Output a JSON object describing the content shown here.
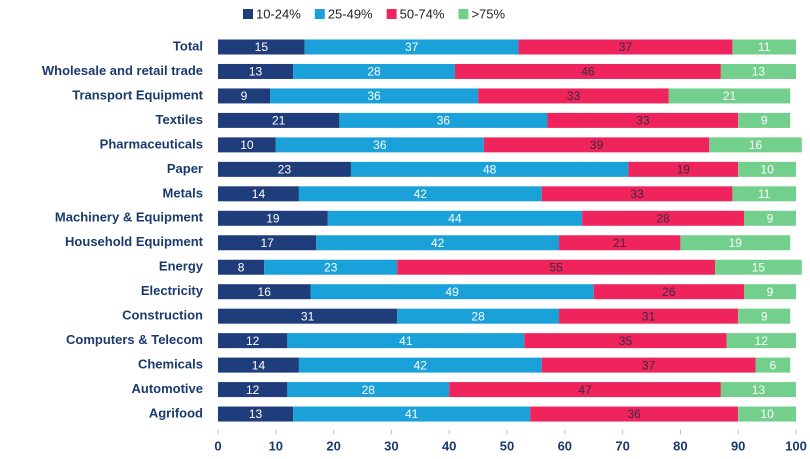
{
  "chart_data": {
    "type": "stacked-barh",
    "categories": [
      "Total",
      "Wholesale and retail trade",
      "Transport Equipment",
      "Textiles",
      "Pharmaceuticals",
      "Paper",
      "Metals",
      "Machinery & Equipment",
      "Household Equipment",
      "Energy",
      "Electricity",
      "Construction",
      "Computers & Telecom",
      "Chemicals",
      "Automotive",
      "Agrifood"
    ],
    "series": [
      {
        "name": "10-24%",
        "color": "#1f3d7a",
        "values": [
          15,
          13,
          9,
          21,
          10,
          23,
          14,
          19,
          17,
          8,
          16,
          31,
          12,
          14,
          12,
          13
        ]
      },
      {
        "name": "25-49%",
        "color": "#1ba1d9",
        "values": [
          37,
          28,
          36,
          36,
          36,
          48,
          42,
          44,
          42,
          23,
          49,
          28,
          41,
          42,
          28,
          41
        ]
      },
      {
        "name": "50-74%",
        "color": "#f0245c",
        "values": [
          37,
          46,
          33,
          33,
          39,
          19,
          33,
          28,
          21,
          55,
          26,
          31,
          35,
          37,
          47,
          36
        ]
      },
      {
        "name": ">75%",
        "color": "#72d08c",
        "values": [
          11,
          13,
          21,
          9,
          16,
          10,
          11,
          9,
          19,
          15,
          9,
          9,
          12,
          6,
          13,
          10
        ]
      }
    ],
    "xlim": [
      0,
      100
    ],
    "xticks": [
      0,
      10,
      20,
      30,
      40,
      50,
      60,
      70,
      80,
      90,
      100
    ],
    "grid": false,
    "legend": "top"
  }
}
